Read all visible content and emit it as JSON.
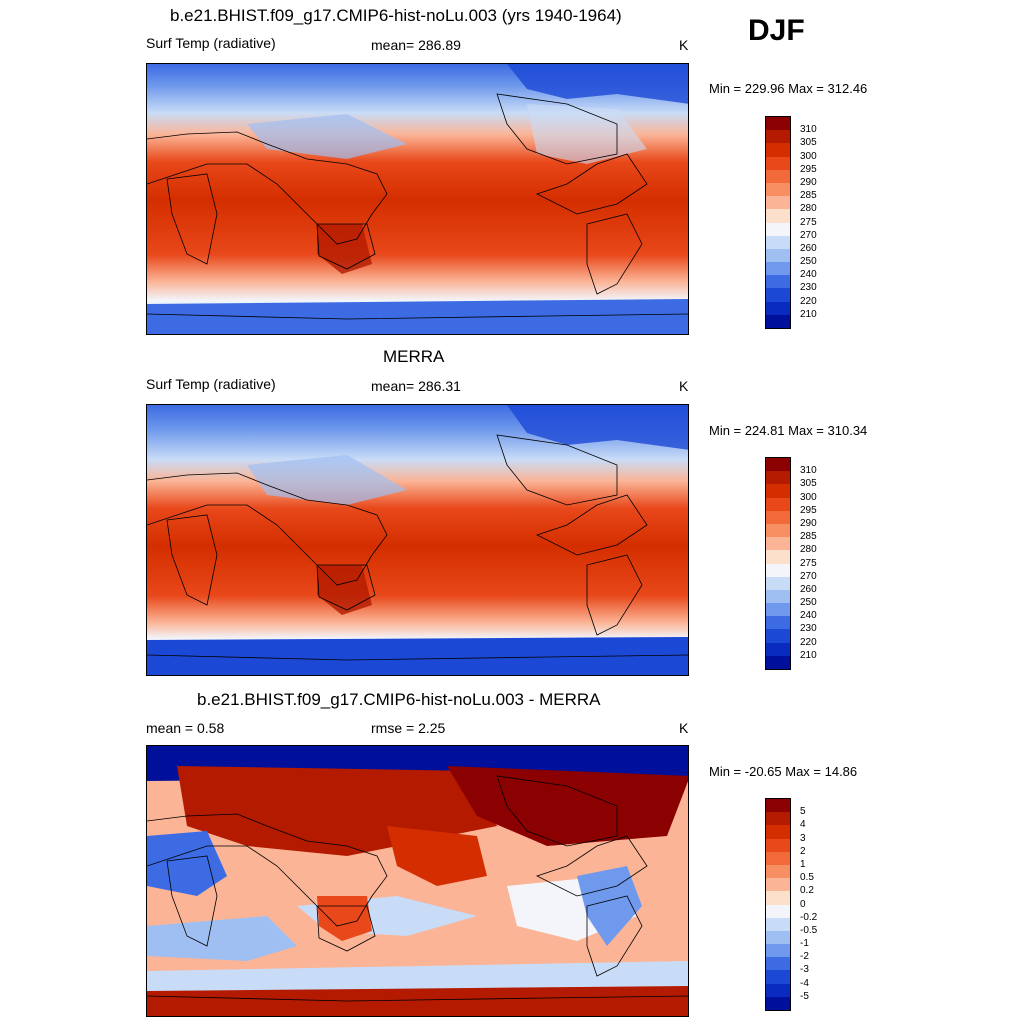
{
  "season": "DJF",
  "panels": [
    {
      "title": "b.e21.BHIST.f09_g17.CMIP6-hist-noLu.003 (yrs 1940-1964)",
      "left": "Surf Temp (radiative)",
      "center": "mean= 286.89",
      "unit": "K",
      "minmax": "Min = 229.96 Max = 312.46",
      "colorbar": [
        "310",
        "305",
        "300",
        "295",
        "290",
        "285",
        "280",
        "275",
        "270",
        "260",
        "250",
        "240",
        "230",
        "220",
        "210"
      ]
    },
    {
      "title": "MERRA",
      "left": "Surf Temp (radiative)",
      "center": "mean= 286.31",
      "unit": "K",
      "minmax": "Min = 224.81 Max = 310.34",
      "colorbar": [
        "310",
        "305",
        "300",
        "295",
        "290",
        "285",
        "280",
        "275",
        "270",
        "260",
        "250",
        "240",
        "230",
        "220",
        "210"
      ]
    },
    {
      "title": "b.e21.BHIST.f09_g17.CMIP6-hist-noLu.003 - MERRA",
      "left": "mean =   0.58",
      "center": "rmse =   2.25",
      "unit": "K",
      "minmax": "Min = -20.65 Max =  14.86",
      "colorbar": [
        "5",
        "4",
        "3",
        "2",
        "1",
        "0.5",
        "0.2",
        "0",
        "-0.2",
        "-0.5",
        "-1",
        "-2",
        "-3",
        "-4",
        "-5"
      ]
    }
  ],
  "colors": {
    "abs_scale": [
      "#8b0000",
      "#b31a00",
      "#d42e00",
      "#e8481a",
      "#f26a3a",
      "#f78f62",
      "#fbb496",
      "#fde0cc",
      "#f3f5fb",
      "#c9dcf7",
      "#9fbff2",
      "#6f99ec",
      "#3c6be3",
      "#1c48d6",
      "#0a2bc0",
      "#00109a"
    ],
    "diff_scale": [
      "#8b0000",
      "#b31a00",
      "#d42e00",
      "#e8481a",
      "#f26a3a",
      "#f78f62",
      "#fbb496",
      "#fde0cc",
      "#f3f5fb",
      "#c9dcf7",
      "#9fbff2",
      "#6f99ec",
      "#3c6be3",
      "#1c48d6",
      "#0a2bc0",
      "#00109a"
    ]
  }
}
